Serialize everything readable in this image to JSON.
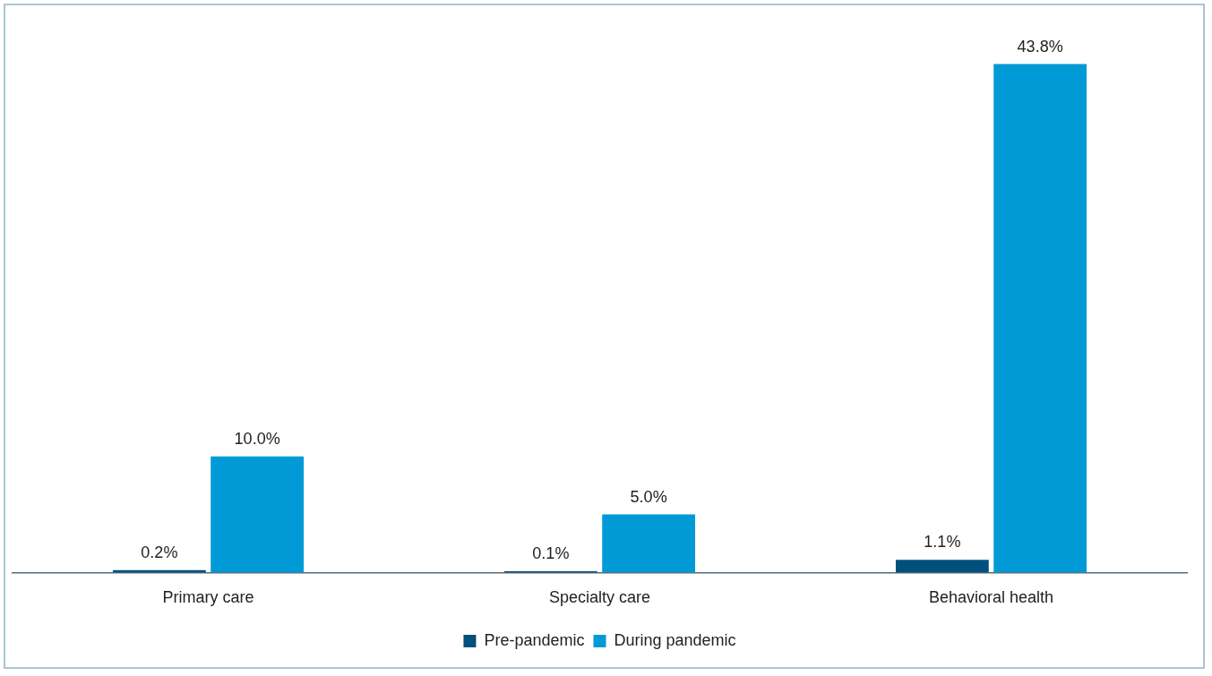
{
  "chart_data": {
    "type": "bar",
    "categories": [
      "Primary care",
      "Specialty care",
      "Behavioral health"
    ],
    "series": [
      {
        "name": "Pre-pandemic",
        "color": "#004f7c",
        "values": [
          0.2,
          0.1,
          1.1
        ],
        "value_labels": [
          "0.2%",
          "0.1%",
          "1.1%"
        ]
      },
      {
        "name": "During pandemic",
        "color": "#009ad6",
        "values": [
          10.0,
          5.0,
          43.8
        ],
        "value_labels": [
          "10.0%",
          "5.0%",
          "43.8%"
        ]
      }
    ],
    "legend": "bottom",
    "grid": false
  }
}
